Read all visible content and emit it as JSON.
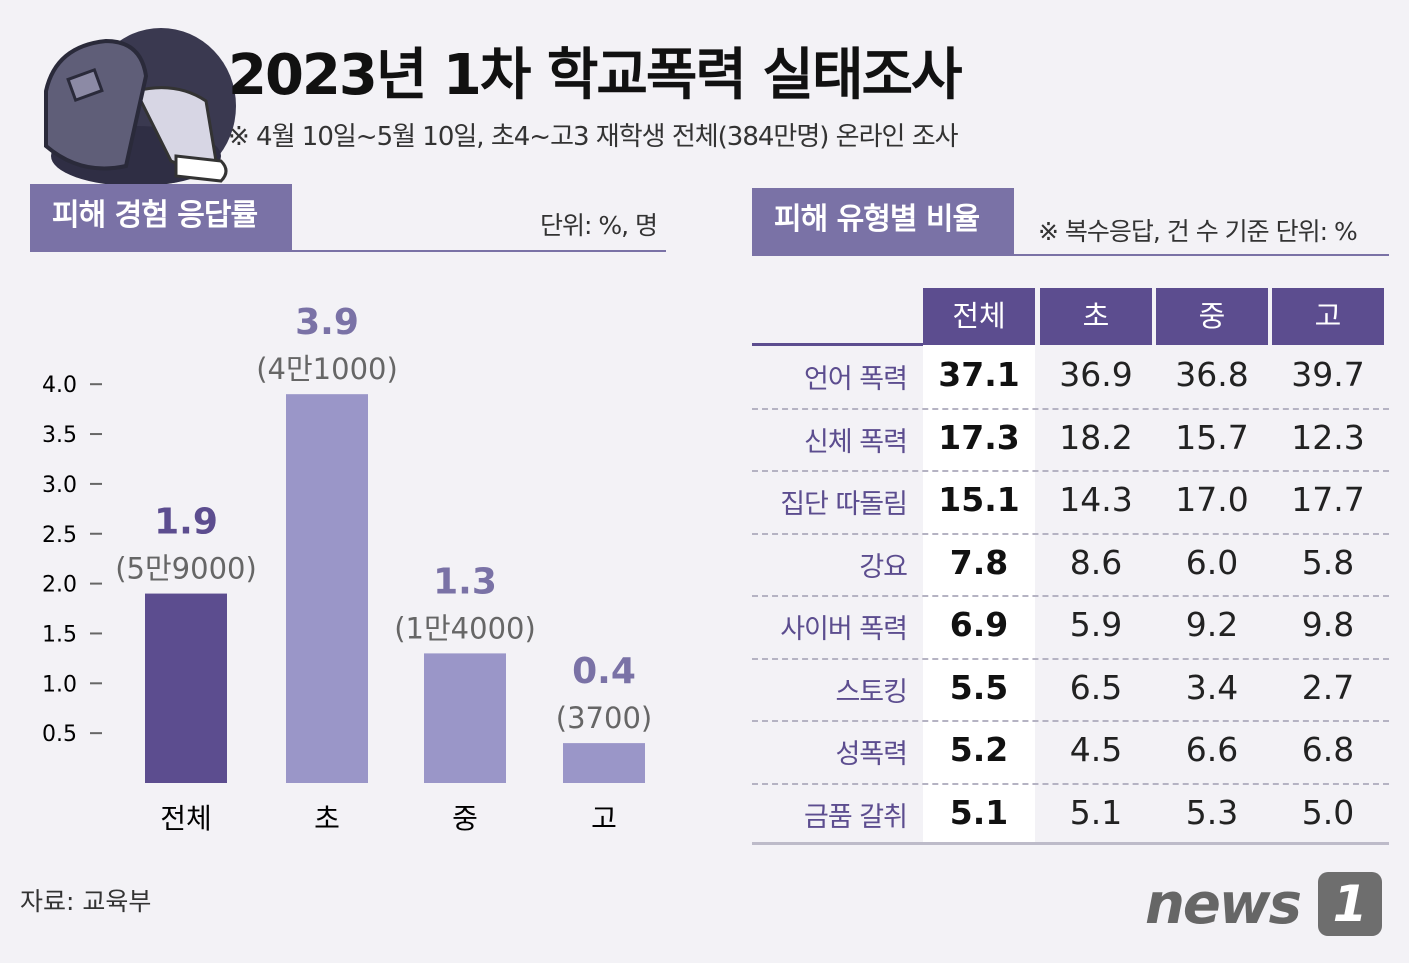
{
  "title": "2023년 1차 학교폭력 실태조사",
  "subtitle": "※ 4월 10일~5월 10일, 초4~고3 재학생 전체(384만명) 온라인 조사",
  "left_section": {
    "title": "피해 경험 응답률",
    "unit": "단위: %, 명"
  },
  "right_section": {
    "title": "피해 유형별 비율",
    "unit": "※ 복수응답, 건 수 기준  단위: %"
  },
  "source": "자료: 교육부",
  "logo": {
    "text": "news",
    "mark": "1"
  },
  "colors": {
    "accent": "#5c4d8f",
    "bar_light": "#9a96c8",
    "header_tab": "#7a72a6"
  },
  "icon": "student-with-backpack-illustration",
  "chart_data": [
    {
      "type": "bar",
      "title": "피해 경험 응답률",
      "unit": "단위: %, 명",
      "categories": [
        "전체",
        "초",
        "중",
        "고"
      ],
      "values": [
        1.9,
        3.9,
        1.3,
        0.4
      ],
      "value_labels": [
        "1.9",
        "3.9",
        "1.3",
        "0.4"
      ],
      "count_labels": [
        "(5만9000)",
        "(4만1000)",
        "(1만4000)",
        "(3700)"
      ],
      "yticks": [
        "0.5",
        "1.0",
        "1.5",
        "2.0",
        "2.5",
        "3.0",
        "3.5",
        "4.0"
      ],
      "ylim": [
        0,
        4.0
      ]
    },
    {
      "type": "table",
      "title": "피해 유형별 비율",
      "columns": [
        "전체",
        "초",
        "중",
        "고"
      ],
      "rows": [
        {
          "label": "언어 폭력",
          "values": [
            "37.1",
            "36.9",
            "36.8",
            "39.7"
          ]
        },
        {
          "label": "신체 폭력",
          "values": [
            "17.3",
            "18.2",
            "15.7",
            "12.3"
          ]
        },
        {
          "label": "집단 따돌림",
          "values": [
            "15.1",
            "14.3",
            "17.0",
            "17.7"
          ]
        },
        {
          "label": "강요",
          "values": [
            "7.8",
            "8.6",
            "6.0",
            "5.8"
          ]
        },
        {
          "label": "사이버 폭력",
          "values": [
            "6.9",
            "5.9",
            "9.2",
            "9.8"
          ]
        },
        {
          "label": "스토킹",
          "values": [
            "5.5",
            "6.5",
            "3.4",
            "2.7"
          ]
        },
        {
          "label": "성폭력",
          "values": [
            "5.2",
            "4.5",
            "6.6",
            "6.8"
          ]
        },
        {
          "label": "금품 갈취",
          "values": [
            "5.1",
            "5.1",
            "5.3",
            "5.0"
          ]
        }
      ]
    }
  ]
}
